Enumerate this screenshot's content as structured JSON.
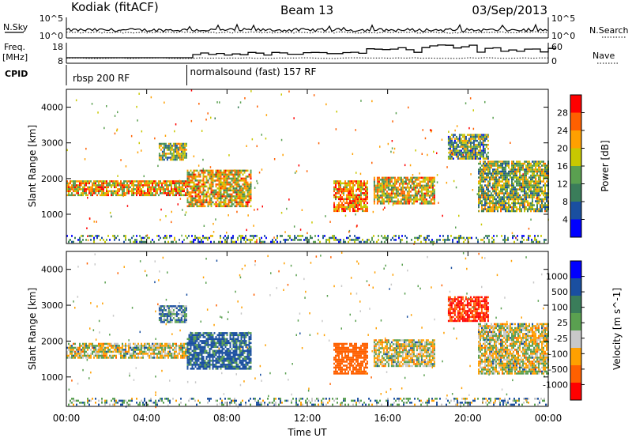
{
  "header": {
    "station": "Kodiak (fitACF)",
    "beam": "Beam 13",
    "date": "03/Sep/2013"
  },
  "noise_panel": {
    "left_label": "N.Sky",
    "right_label": "N.Search",
    "left_ticks": [
      "10^5",
      "10^0"
    ],
    "right_ticks": [
      "10^5",
      "10^0"
    ]
  },
  "freq_panel": {
    "left_label_1": "Freq.",
    "left_label_2": "[MHz]",
    "right_label": "Nave",
    "left_ticks": [
      "18",
      "8"
    ],
    "right_ticks": [
      "60",
      "0"
    ],
    "freq_ylim": [
      8,
      18
    ],
    "nave_ylim": [
      0,
      60
    ]
  },
  "cpid": {
    "label": "CPID",
    "segments": [
      {
        "start_hour": 0,
        "end_hour": 6,
        "name": "rbsp 200 RF"
      },
      {
        "start_hour": 6,
        "end_hour": 24,
        "name": "normalsound (fast) 157 RF"
      }
    ]
  },
  "chart_data": [
    {
      "type": "heatmap",
      "title": "",
      "xlabel": "Time UT",
      "ylabel": "Slant Range [km]",
      "x_ticks": [
        "00:00",
        "04:00",
        "08:00",
        "12:00",
        "16:00",
        "20:00",
        "00:00"
      ],
      "xlim_hours": [
        0,
        24
      ],
      "ylim": [
        180,
        4500
      ],
      "y_ticks": [
        1000,
        2000,
        3000,
        4000
      ],
      "colorbar": {
        "label": "Power [dB]",
        "ticks": [
          "4",
          "8",
          "12",
          "16",
          "20",
          "24",
          "28"
        ],
        "range": [
          0,
          30
        ]
      },
      "echo_regions": [
        {
          "t0": 0.0,
          "t1": 6.0,
          "r0": 1550,
          "r1": 1950,
          "v": 20
        },
        {
          "t0": 4.6,
          "t1": 6.0,
          "r0": 2550,
          "r1": 3000,
          "v": 14
        },
        {
          "t0": 6.0,
          "t1": 9.2,
          "r0": 1250,
          "r1": 2250,
          "v": 18
        },
        {
          "t0": 13.3,
          "t1": 15.0,
          "r0": 1100,
          "r1": 1950,
          "v": 22
        },
        {
          "t0": 15.3,
          "t1": 18.3,
          "r0": 1300,
          "r1": 2050,
          "v": 18
        },
        {
          "t0": 19.0,
          "t1": 21.0,
          "r0": 2550,
          "r1": 3250,
          "v": 12
        },
        {
          "t0": 20.5,
          "t1": 24.0,
          "r0": 1100,
          "r1": 2500,
          "v": 14
        },
        {
          "t0": 0.0,
          "t1": 24.0,
          "r0": 200,
          "r1": 420,
          "v": 10
        }
      ]
    },
    {
      "type": "heatmap",
      "title": "",
      "xlabel": "Time UT",
      "ylabel": "Slant Range [km]",
      "x_ticks": [
        "00:00",
        "04:00",
        "08:00",
        "12:00",
        "16:00",
        "20:00",
        "00:00"
      ],
      "xlim_hours": [
        0,
        24
      ],
      "ylim": [
        180,
        4500
      ],
      "y_ticks": [
        1000,
        2000,
        3000,
        4000
      ],
      "colorbar": {
        "label": "Velocity [m s^-1]",
        "ticks": [
          "1000",
          "500",
          "100",
          "25",
          "-25",
          "-100",
          "-500",
          "-1000"
        ]
      },
      "echo_regions": [
        {
          "t0": 0.0,
          "t1": 6.0,
          "r0": 1550,
          "r1": 1950,
          "v": 0
        },
        {
          "t0": 4.6,
          "t1": 6.0,
          "r0": 2550,
          "r1": 3000,
          "v": 100
        },
        {
          "t0": 6.0,
          "t1": 9.2,
          "r0": 1250,
          "r1": 2250,
          "v": 150
        },
        {
          "t0": 13.3,
          "t1": 15.0,
          "r0": 1100,
          "r1": 1950,
          "v": -300
        },
        {
          "t0": 15.3,
          "t1": 18.3,
          "r0": 1300,
          "r1": 2050,
          "v": 0
        },
        {
          "t0": 19.0,
          "t1": 21.0,
          "r0": 2550,
          "r1": 3250,
          "v": -500
        },
        {
          "t0": 20.5,
          "t1": 24.0,
          "r0": 1100,
          "r1": 2500,
          "v": 0
        },
        {
          "t0": 0.0,
          "t1": 24.0,
          "r0": 200,
          "r1": 420,
          "v": 60
        }
      ]
    }
  ],
  "colors": {
    "power_scale": [
      "#0000ff",
      "#1a4fa0",
      "#3a7d5a",
      "#5aa050",
      "#c8c800",
      "#ffa000",
      "#ff6000",
      "#ff0000"
    ],
    "velocity_scale": [
      "#0000ff",
      "#1a4fa0",
      "#3a7d5a",
      "#5aa050",
      "#c8c8c8",
      "#ffa000",
      "#ff6000",
      "#ff0000"
    ]
  }
}
